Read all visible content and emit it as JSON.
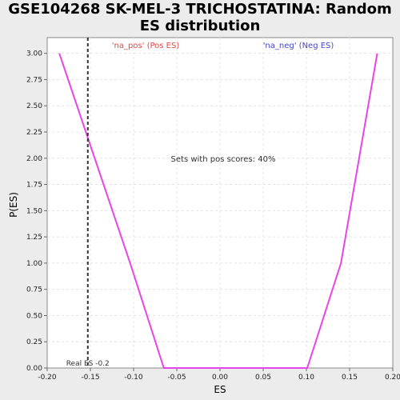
{
  "title_line1": "GSE104268 SK-MEL-3 TRICHOSTATINA: Random",
  "title_line2": "ES distribution",
  "chart_data": {
    "type": "line",
    "xlabel": "ES",
    "ylabel": "P(ES)",
    "xlim": [
      -0.2,
      0.2
    ],
    "ylim": [
      0.0,
      3.15
    ],
    "x_ticks": [
      "-0.20",
      "-0.15",
      "-0.10",
      "-0.05",
      "0.00",
      "0.05",
      "0.10",
      "0.15",
      "0.20"
    ],
    "y_ticks": [
      "0.00",
      "0.25",
      "0.50",
      "0.75",
      "1.00",
      "1.25",
      "1.50",
      "1.75",
      "2.00",
      "2.25",
      "2.50",
      "2.75",
      "3.00"
    ],
    "grid": true,
    "series": [
      {
        "color": "#e845e8",
        "x": [
          -0.186,
          -0.104,
          -0.065,
          0.101,
          0.14,
          0.182
        ],
        "y": [
          3.0,
          1.0,
          0.0,
          0.0,
          1.0,
          3.0
        ]
      }
    ],
    "real_es": {
      "x": -0.153,
      "label": "Real ES -0.2"
    },
    "annotations": {
      "pos_label": "'na_pos' (Pos ES)",
      "pos_color": "#e84545",
      "neg_label": "'na_neg' (Neg ES)",
      "neg_color": "#4545c8",
      "center_text": "Sets with pos scores: 40%"
    }
  }
}
